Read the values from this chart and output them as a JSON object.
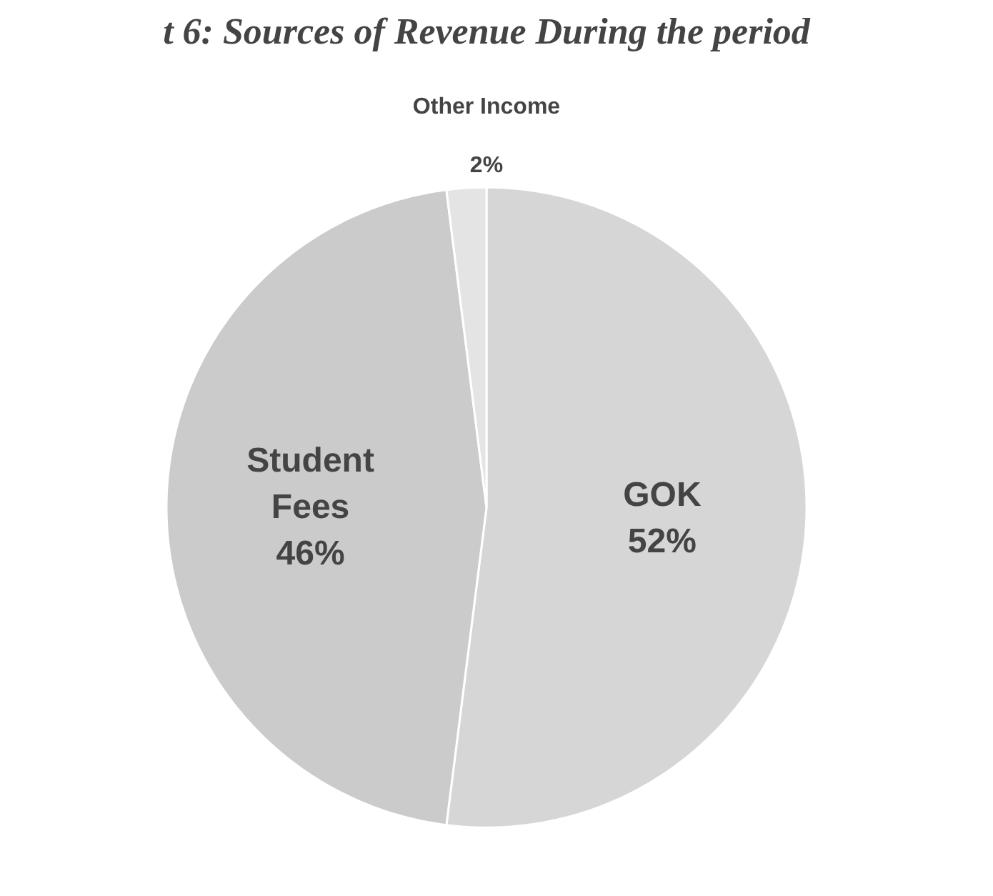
{
  "chart_data": {
    "type": "pie",
    "title": "t 6: Sources of Revenue During the period",
    "categories": [
      "GOK",
      "Student Fees",
      "Other Income"
    ],
    "values": [
      52,
      46,
      2
    ],
    "colors": [
      "#d6d6d6",
      "#cbcbcb",
      "#e4e4e4"
    ],
    "value_labels": [
      "52%",
      "46%",
      "2%"
    ]
  }
}
